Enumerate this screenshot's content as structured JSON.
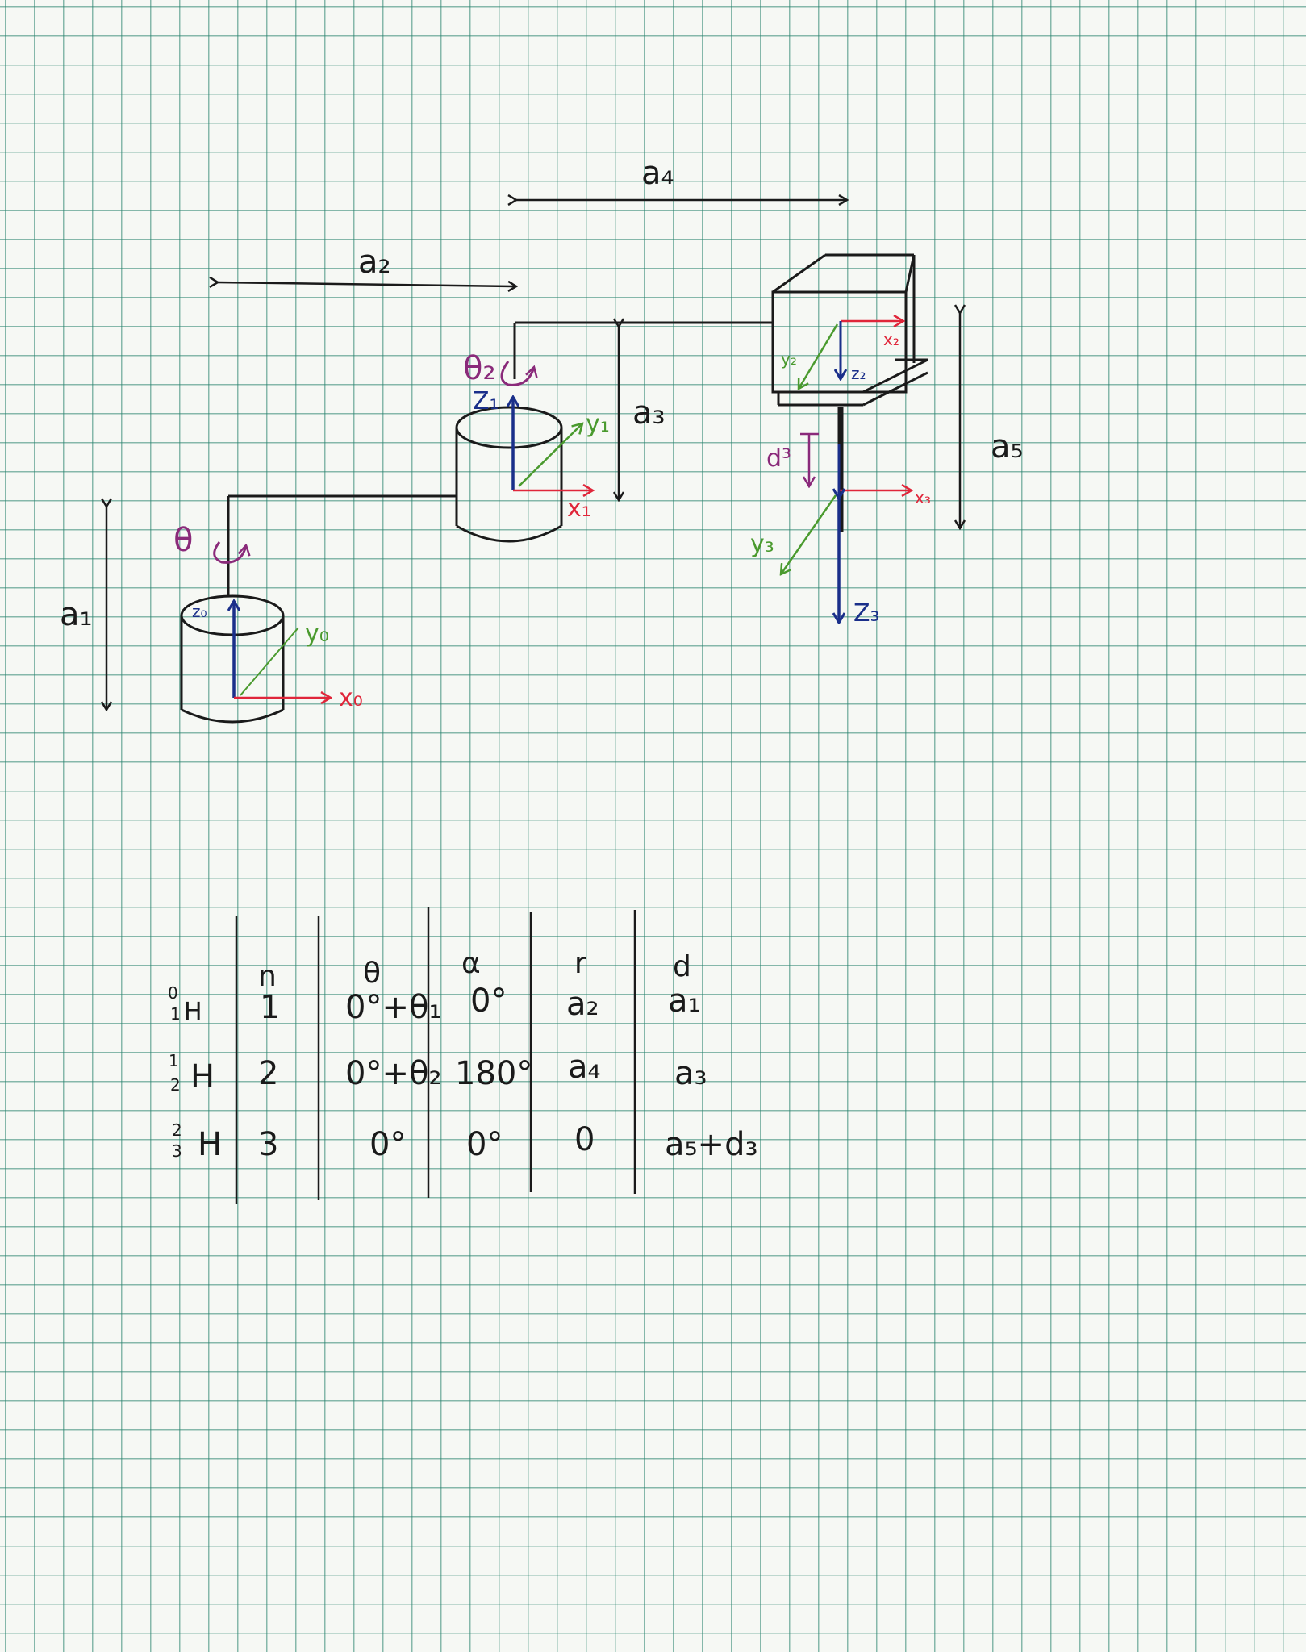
{
  "diagram": {
    "dimensions": {
      "a1": "a₁",
      "a2": "a₂",
      "a3": "a₃",
      "a4": "a₄",
      "a5": "a₅",
      "d3": "d³"
    },
    "joint_labels": {
      "theta1": "θ",
      "theta2": "θ₂"
    },
    "frames": {
      "frame0": {
        "z": "z₀",
        "y": "y₀",
        "x": "x₀"
      },
      "frame1": {
        "z": "Z₁",
        "y": "y₁",
        "x": "x₁"
      },
      "frame2": {
        "z": "z₂",
        "y": "y₂",
        "x": "x₂"
      },
      "frame3": {
        "z": "Z₃",
        "y": "y₃",
        "x": "x₃"
      }
    },
    "colors": {
      "ink": "#1a1a1a",
      "x_axis": "#e0263a",
      "y_axis": "#4a9a2e",
      "z_axis": "#1a2f8a",
      "rotation": "#8a2a7a"
    }
  },
  "dh_table": {
    "headers": [
      "n",
      "θ",
      "α",
      "r",
      "d"
    ],
    "rows": [
      {
        "label_sup": "0",
        "label_sub": "1",
        "label": "H",
        "n": "1",
        "theta": "0°+θ₁",
        "alpha": "0°",
        "r": "a₂",
        "d": "a₁"
      },
      {
        "label_sup": "1",
        "label_sub": "2",
        "label": "H",
        "n": "2",
        "theta": "0°+θ₂",
        "alpha": "180°",
        "r": "a₄",
        "d": "a₃"
      },
      {
        "label_sup": "2",
        "label_sub": "3",
        "label": "H",
        "n": "3",
        "theta": "0°",
        "alpha": "0°",
        "r": "0",
        "d": "a₅+d₃"
      }
    ]
  }
}
